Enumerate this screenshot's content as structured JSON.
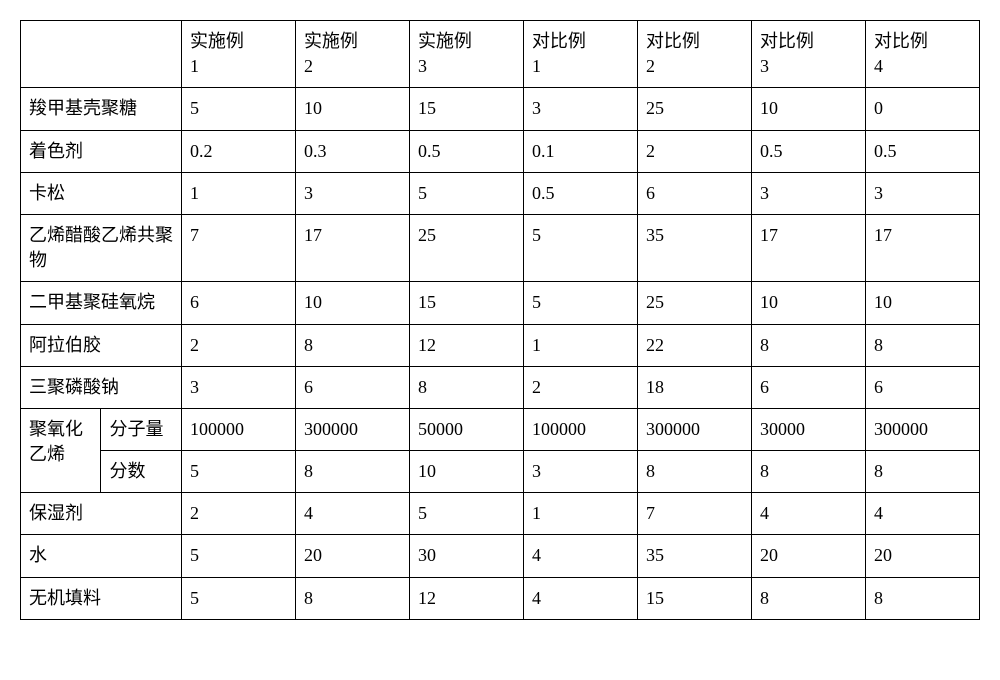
{
  "columns": [
    "",
    "实施例1",
    "实施例2",
    "实施例3",
    "对比例1",
    "对比例2",
    "对比例3",
    "对比例4"
  ],
  "header_cells": [
    "实施例\n1",
    "实施例\n2",
    "实施例\n3",
    "对比例\n1",
    "对比例\n2",
    "对比例\n3",
    "对比例\n4"
  ],
  "rows": [
    {
      "label": "羧甲基壳聚糖",
      "values": [
        "5",
        "10",
        "15",
        "3",
        "25",
        "10",
        "0"
      ]
    },
    {
      "label": "着色剂",
      "values": [
        "0.2",
        "0.3",
        "0.5",
        "0.1",
        "2",
        "0.5",
        "0.5"
      ]
    },
    {
      "label": "卡松",
      "values": [
        "1",
        "3",
        "5",
        "0.5",
        "6",
        "3",
        "3"
      ]
    },
    {
      "label": "乙烯醋酸乙烯共聚物",
      "values": [
        "7",
        "17",
        "25",
        "5",
        "35",
        "17",
        "17"
      ]
    },
    {
      "label": "二甲基聚硅氧烷",
      "values": [
        "6",
        "10",
        "15",
        "5",
        "25",
        "10",
        "10"
      ]
    },
    {
      "label": "阿拉伯胶",
      "values": [
        "2",
        "8",
        "12",
        "1",
        "22",
        "8",
        "8"
      ]
    },
    {
      "label": "三聚磷酸钠",
      "values": [
        "3",
        "6",
        "8",
        "2",
        "18",
        "6",
        "6"
      ]
    }
  ],
  "grouped_row": {
    "group_label": "聚氧化乙烯",
    "subrows": [
      {
        "label": "分子量",
        "values": [
          "100000",
          "300000",
          "50000",
          "100000",
          "300000",
          "30000",
          "300000"
        ]
      },
      {
        "label": "分数",
        "values": [
          "5",
          "8",
          "10",
          "3",
          "8",
          "8",
          "8"
        ]
      }
    ]
  },
  "rows_after": [
    {
      "label": "保湿剂",
      "values": [
        "2",
        "4",
        "5",
        "1",
        "7",
        "4",
        "4"
      ]
    },
    {
      "label": "水",
      "values": [
        "5",
        "20",
        "30",
        "4",
        "35",
        "20",
        "20"
      ]
    },
    {
      "label": "无机填料",
      "values": [
        "5",
        "8",
        "12",
        "4",
        "15",
        "8",
        "8"
      ]
    }
  ],
  "style": {
    "font_family": "SimSun",
    "font_size_pt": 14,
    "border_color": "#000000",
    "background_color": "#ffffff",
    "text_color": "#000000"
  }
}
